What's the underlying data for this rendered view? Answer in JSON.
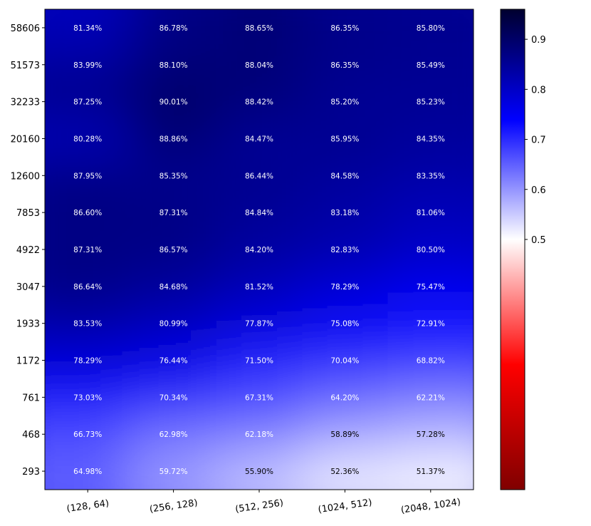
{
  "chart_data": {
    "type": "heatmap",
    "title": "",
    "xlabel": "",
    "ylabel": "",
    "x_categories": [
      "(128, 64)",
      "(256, 128)",
      "(512, 256)",
      "(1024, 512)",
      "(2048, 1024)"
    ],
    "y_categories": [
      "58606",
      "51573",
      "32233",
      "20160",
      "12600",
      "7853",
      "4922",
      "3047",
      "1933",
      "1172",
      "761",
      "468",
      "293"
    ],
    "values": [
      [
        81.34,
        86.78,
        88.65,
        86.35,
        85.8
      ],
      [
        83.99,
        88.1,
        88.04,
        86.35,
        85.49
      ],
      [
        87.25,
        90.01,
        88.42,
        85.2,
        85.23
      ],
      [
        80.28,
        88.86,
        84.47,
        85.95,
        84.35
      ],
      [
        87.95,
        85.35,
        86.44,
        84.58,
        83.35
      ],
      [
        86.6,
        87.31,
        84.84,
        83.18,
        81.06
      ],
      [
        87.31,
        86.57,
        84.2,
        82.83,
        80.5
      ],
      [
        86.64,
        84.68,
        81.52,
        78.29,
        75.47
      ],
      [
        83.53,
        80.99,
        77.87,
        75.08,
        72.91
      ],
      [
        78.29,
        76.44,
        71.5,
        70.04,
        68.82
      ],
      [
        73.03,
        70.34,
        67.31,
        64.2,
        62.21
      ],
      [
        66.73,
        62.98,
        62.18,
        58.89,
        57.28
      ],
      [
        64.98,
        59.72,
        55.9,
        52.36,
        51.37
      ]
    ],
    "value_format": "percent_2dp",
    "colormap": "seismic_r",
    "colorbar": {
      "range": [
        0,
        0.96
      ],
      "ticks": [
        0.5,
        0.6,
        0.7,
        0.8,
        0.9
      ],
      "tick_labels": [
        "0.5",
        "0.6",
        "0.7",
        "0.8",
        "0.9"
      ]
    },
    "colors": {
      "dark_navy": "#00002f",
      "blue": "#0000ff",
      "white": "#ffffff",
      "red": "#ff0000",
      "dark_red": "#800000"
    },
    "smoothed": true
  }
}
